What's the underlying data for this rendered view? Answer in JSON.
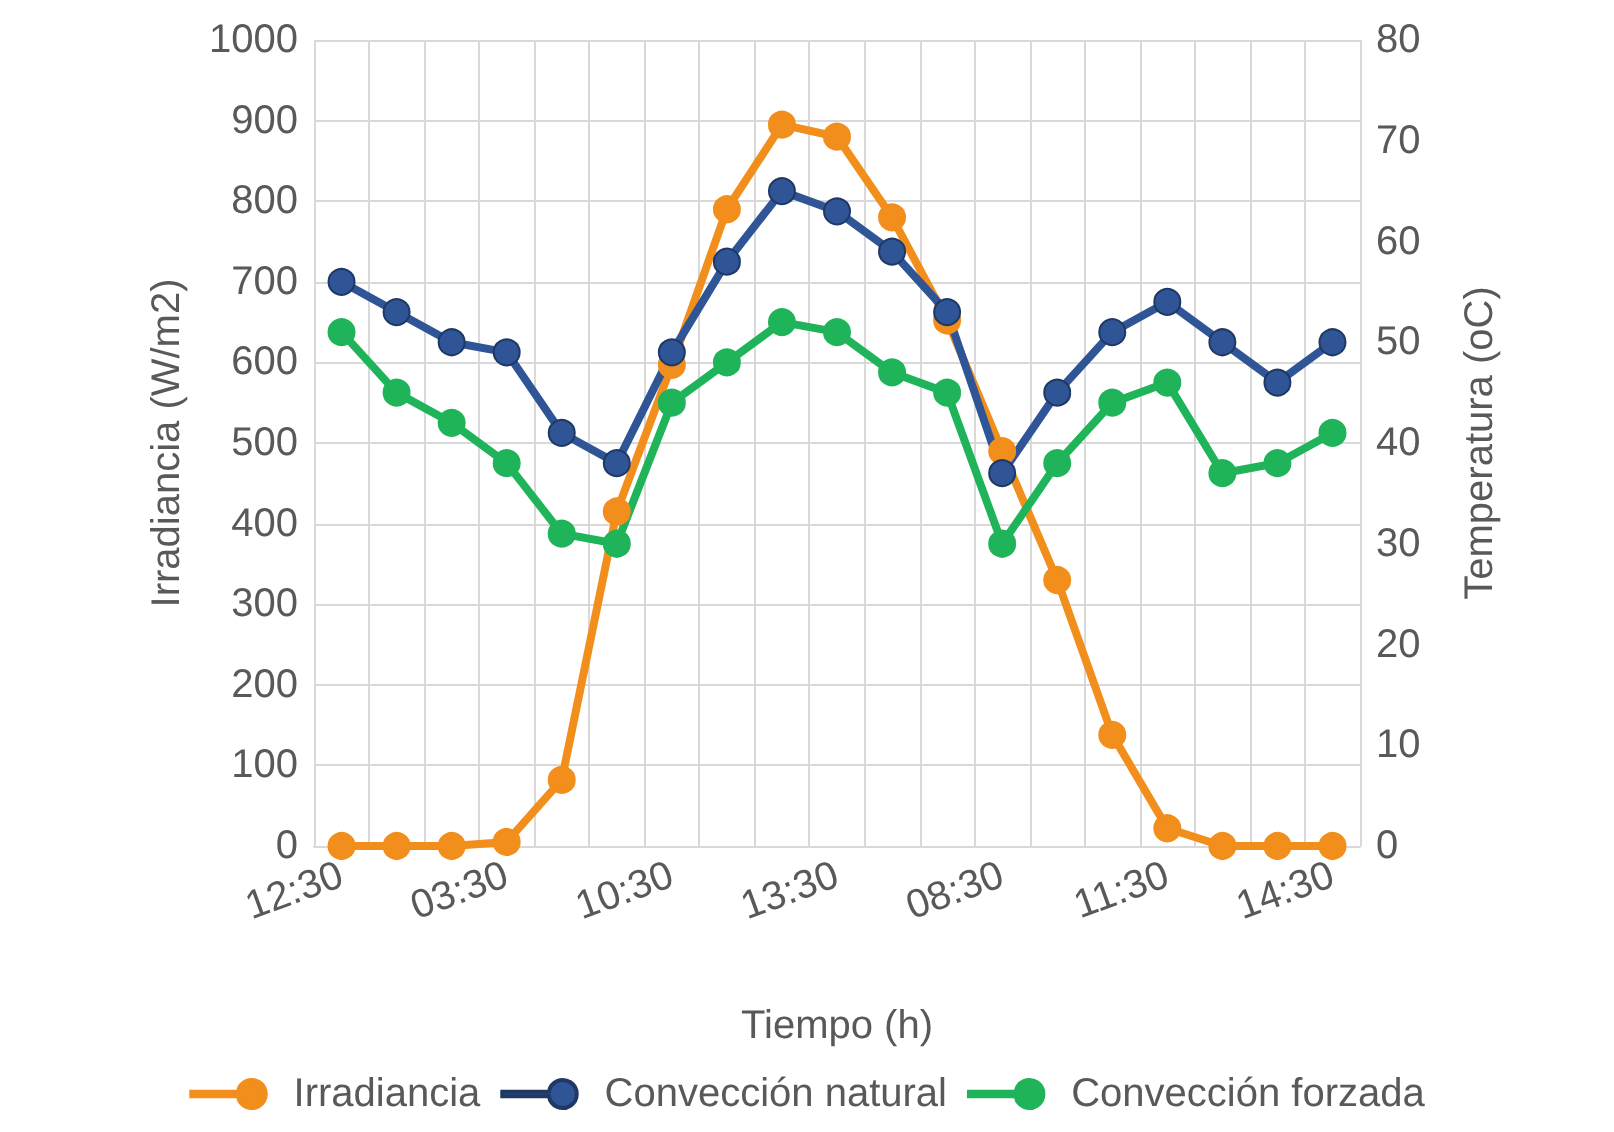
{
  "chart_data": {
    "type": "line",
    "xlabel": "Tiempo (h)",
    "ylabel": "Irradiancia (W/m2)",
    "y2label": "Temperatura (oC)",
    "categories": [
      "12:30",
      null,
      null,
      "03:30",
      null,
      null,
      "10:30",
      null,
      null,
      "13:30",
      null,
      null,
      "08:30",
      null,
      null,
      "11:30",
      null,
      null,
      "14:30"
    ],
    "series": [
      {
        "name": "Irradiancia",
        "color": "#f28e1c",
        "values": [
          0,
          0,
          0,
          5,
          82,
          415,
          597,
          790,
          895,
          880,
          780,
          652,
          490,
          330,
          138,
          22,
          0,
          0,
          0
        ]
      },
      {
        "name": "Convección natural",
        "color": "#2f5597",
        "axis": "y2",
        "values": [
          56,
          53,
          50,
          49,
          41,
          38,
          49,
          58,
          65,
          63,
          59,
          53,
          37,
          45,
          51,
          54,
          50,
          46,
          50
        ]
      },
      {
        "name": "Convección forzada",
        "color": "#1fb45a",
        "axis": "y2",
        "values": [
          51,
          45,
          42,
          38,
          31,
          30,
          44,
          48,
          52,
          51,
          47,
          45,
          30,
          38,
          44,
          46,
          37,
          38,
          41
        ]
      }
    ],
    "ylim": [
      0,
      1000
    ],
    "yticks": [
      0,
      100,
      200,
      300,
      400,
      500,
      600,
      700,
      800,
      900,
      1000
    ],
    "y2lim": [
      0,
      80
    ],
    "y2ticks": [
      0,
      10,
      20,
      30,
      40,
      50,
      60,
      70,
      80
    ],
    "grid": true,
    "legend": "bottom",
    "marker": "circle",
    "line_style": "solid"
  }
}
